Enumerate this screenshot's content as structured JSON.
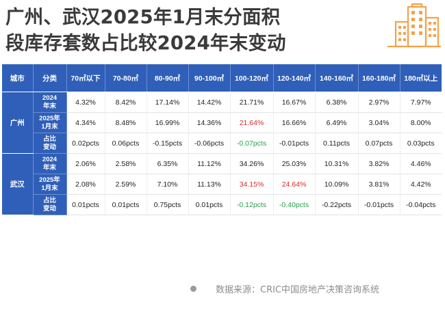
{
  "title_line1": "广州、武汉2025年1月末分面积",
  "title_line2": "段库存套数占比较2024年末变动",
  "headers": [
    "城市",
    "分类",
    "70㎡以下",
    "70-80㎡",
    "80-90㎡",
    "90-100㎡",
    "100-120㎡",
    "120-140㎡",
    "140-160㎡",
    "160-180㎡",
    "180㎡以上"
  ],
  "groups": [
    {
      "city": "广州",
      "rows": [
        {
          "label": [
            "2024",
            "年末"
          ],
          "values": [
            "4.32%",
            "8.42%",
            "17.14%",
            "14.42%",
            "21.71%",
            "16.67%",
            "6.38%",
            "2.97%",
            "7.97%"
          ],
          "colors": [
            "",
            "",
            "",
            "",
            "",
            "",
            "",
            "",
            ""
          ]
        },
        {
          "label": [
            "2025年",
            "1月末"
          ],
          "values": [
            "4.34%",
            "8.48%",
            "16.99%",
            "14.36%",
            "21.64%",
            "16.66%",
            "6.49%",
            "3.04%",
            "8.00%"
          ],
          "colors": [
            "",
            "",
            "",
            "",
            "red",
            "",
            "",
            "",
            ""
          ]
        },
        {
          "label": [
            "占比",
            "变动"
          ],
          "values": [
            "0.02pcts",
            "0.06pcts",
            "-0.15pcts",
            "-0.06pcts",
            "-0.07pcts",
            "-0.01pcts",
            "0.11pcts",
            "0.07pcts",
            "0.03pcts"
          ],
          "colors": [
            "",
            "",
            "",
            "",
            "green",
            "",
            "",
            "",
            ""
          ]
        }
      ]
    },
    {
      "city": "武汉",
      "rows": [
        {
          "label": [
            "2024",
            "年末"
          ],
          "values": [
            "2.06%",
            "2.58%",
            "6.35%",
            "11.12%",
            "34.26%",
            "25.03%",
            "10.31%",
            "3.82%",
            "4.46%"
          ],
          "colors": [
            "",
            "",
            "",
            "",
            "",
            "",
            "",
            "",
            ""
          ]
        },
        {
          "label": [
            "2025年",
            "1月末"
          ],
          "values": [
            "2.08%",
            "2.59%",
            "7.10%",
            "11.13%",
            "34.15%",
            "24.64%",
            "10.09%",
            "3.81%",
            "4.42%"
          ],
          "colors": [
            "",
            "",
            "",
            "",
            "red",
            "red",
            "",
            "",
            ""
          ]
        },
        {
          "label": [
            "占比",
            "变动"
          ],
          "values": [
            "0.01pcts",
            "0.01pcts",
            "0.75pcts",
            "0.01pcts",
            "-0.12pcts",
            "-0.40pcts",
            "-0.22pcts",
            "-0.01pcts",
            "-0.04pcts"
          ],
          "colors": [
            "",
            "",
            "",
            "",
            "green",
            "green",
            "",
            "",
            ""
          ]
        }
      ]
    }
  ],
  "source": "数据来源：CRIC中国房地产决策咨询系统",
  "colors": {
    "header_bg": "#2f5fb8",
    "highlight_red": "#d42a2a",
    "highlight_green": "#23a14a",
    "icon_orange": "#f3a24a"
  },
  "icons": {
    "building": "building-icon",
    "source_dot": "dot-icon"
  }
}
